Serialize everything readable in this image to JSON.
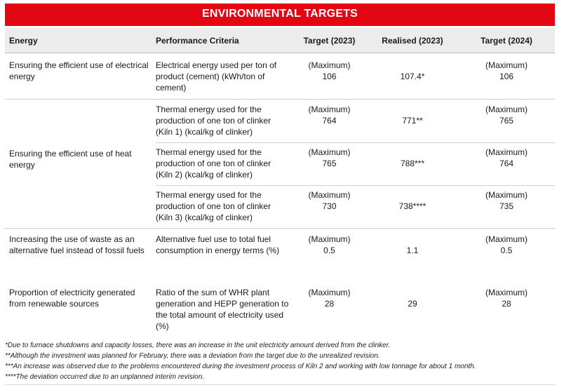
{
  "title": "ENVIRONMENTAL TARGETS",
  "headers": {
    "energy": "Energy",
    "criteria": "Performance Criteria",
    "target2023": "Target (2023)",
    "realised2023": "Realised (2023)",
    "target2024": "Target (2024)"
  },
  "rows": [
    {
      "energy": "Ensuring the efficient use of electrical energy",
      "criteria": "Electrical energy used per ton of product (cement) (kWh/ton of cement)",
      "target2023": "(Maximum)\n106",
      "realised2023": "107.4*",
      "target2024": "(Maximum)\n106"
    },
    {
      "energy": "Ensuring the efficient use of heat energy",
      "sub": [
        {
          "criteria": "Thermal energy used for the production of one ton of clinker (Kiln 1) (kcal/kg of clinker)",
          "target2023": "(Maximum)\n764",
          "realised2023": "771**",
          "target2024": "(Maximum)\n765"
        },
        {
          "criteria": "Thermal energy used for the production of one ton of clinker (Kiln 2) (kcal/kg of clinker)",
          "target2023": "(Maximum)\n765",
          "realised2023": "788***",
          "target2024": "(Maximum)\n764"
        },
        {
          "criteria": "Thermal energy used for the production of one ton of clinker (Kiln 3) (kcal/kg of clinker)",
          "target2023": "(Maximum)\n730",
          "realised2023": "738****",
          "target2024": "(Maximum)\n735"
        }
      ]
    },
    {
      "energy": "Increasing the use of waste as an alternative fuel instead of fossil fuels",
      "criteria": "Alternative fuel use to total fuel consumption in energy terms (%)",
      "target2023": "(Maximum)\n0.5",
      "realised2023": "1.1",
      "target2024": "(Maximum)\n0.5"
    },
    {
      "energy": "Proportion of electricity generated from renewable sources",
      "criteria": "Ratio of the sum of WHR plant generation and HEPP generation to the total amount of electricity used (%)",
      "target2023": "(Maximum)\n28",
      "realised2023": "29",
      "target2024": "(Maximum)\n28"
    }
  ],
  "footnotes": [
    "*Due to furnace shutdowns and capacity losses, there was an increase in the unit electricity amount derived from the clinker.",
    "**Although the investment was planned for February, there was a deviation from the target due to the unrealized revision.",
    "***An increase was observed due to the problems encountered during the investment process of Kiln 2 and working with low tonnage for about 1 month.",
    "****The deviation occurred due to an unplanned interim revision."
  ],
  "colors": {
    "banner": "#e30613",
    "header_bg": "#ececec",
    "rule": "#cfcfcf"
  }
}
